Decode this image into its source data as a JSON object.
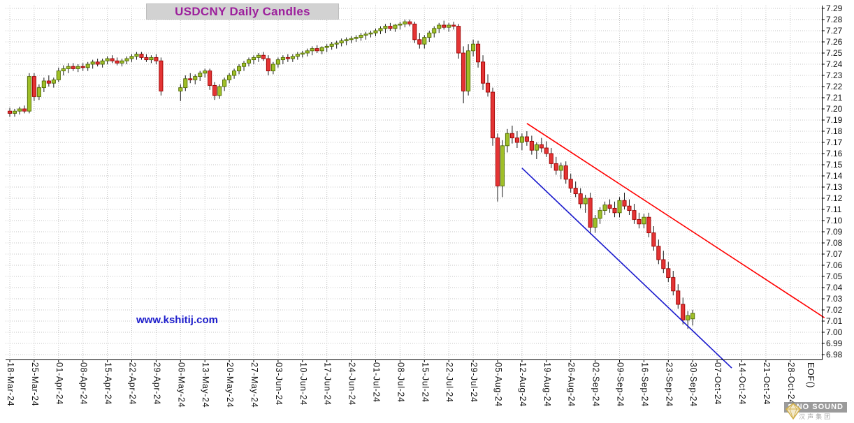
{
  "header": {
    "title": "USDCNY Daily Candles"
  },
  "watermark": "www.kshitij.com",
  "logo": {
    "name": "SINO SOUND",
    "subtitle": "汉声集团"
  },
  "chart_data": {
    "type": "candlestick",
    "title": "USDCNY Daily Candles",
    "symbol": "USDCNY",
    "interval": "daily",
    "grid": true,
    "legend_position": "none",
    "y_axis": {
      "side": "right",
      "min": 6.98,
      "max": 7.29,
      "tick_step": 0.01,
      "ticks": [
        "7.29",
        "7.28",
        "7.27",
        "7.26",
        "7.25",
        "7.24",
        "7.23",
        "7.22",
        "7.21",
        "7.20",
        "7.19",
        "7.18",
        "7.17",
        "7.16",
        "7.15",
        "7.14",
        "7.13",
        "7.12",
        "7.11",
        "7.10",
        "7.09",
        "7.08",
        "7.07",
        "7.06",
        "7.05",
        "7.04",
        "7.03",
        "7.02",
        "7.01",
        "7.00",
        "6.99",
        "6.98"
      ]
    },
    "x_axis": {
      "labels": [
        "18-Mar-24",
        "25-Mar-24",
        "01-Apr-24",
        "08-Apr-24",
        "15-Apr-24",
        "22-Apr-24",
        "29-Apr-24",
        "06-May-24",
        "13-May-24",
        "20-May-24",
        "27-May-24",
        "03-Jun-24",
        "10-Jun-24",
        "17-Jun-24",
        "24-Jun-24",
        "01-Jul-24",
        "08-Jul-24",
        "15-Jul-24",
        "22-Jul-24",
        "29-Jul-24",
        "05-Aug-24",
        "12-Aug-24",
        "19-Aug-24",
        "26-Aug-24",
        "02-Sep-24",
        "09-Sep-24",
        "16-Sep-24",
        "23-Sep-24",
        "30-Sep-24",
        "07-Oct-24",
        "14-Oct-24",
        "21-Oct-24",
        "28-Oct-24"
      ],
      "eof_label": "EOF()"
    },
    "colors": {
      "up": "#9fbf28",
      "up_stroke": "#4f6b00",
      "down": "#e43434",
      "down_stroke": "#9c0000",
      "wick": "#1a1a1a",
      "grid": "#c4c4c4",
      "axis": "#000000",
      "title": "#9c1f9c",
      "title_bg": "#d2d2d2",
      "watermark": "#1f1fcc",
      "trend_upper": "#ff0000",
      "trend_lower": "#1a1acd"
    },
    "trendlines": [
      {
        "name": "upper-channel",
        "color": "#ff0000",
        "from": {
          "tdi": 106,
          "price": 7.187
        },
        "to": {
          "tdi": 167,
          "price": 7.013
        }
      },
      {
        "name": "lower-channel",
        "color": "#1a1acd",
        "from": {
          "tdi": 105,
          "price": 7.147
        },
        "to": {
          "tdi": 148,
          "price": 6.968
        }
      }
    ],
    "candles": [
      [
        "2024-03-18",
        7.198,
        7.201,
        7.193,
        7.196
      ],
      [
        "2024-03-19",
        7.196,
        7.2,
        7.193,
        7.198
      ],
      [
        "2024-03-20",
        7.198,
        7.202,
        7.195,
        7.2
      ],
      [
        "2024-03-21",
        7.2,
        7.203,
        7.196,
        7.198
      ],
      [
        "2024-03-22",
        7.198,
        7.232,
        7.196,
        7.229
      ],
      [
        "2024-03-25",
        7.229,
        7.232,
        7.207,
        7.211
      ],
      [
        "2024-03-26",
        7.211,
        7.222,
        7.208,
        7.219
      ],
      [
        "2024-03-27",
        7.219,
        7.228,
        7.215,
        7.225
      ],
      [
        "2024-03-28",
        7.225,
        7.23,
        7.22,
        7.223
      ],
      [
        "2024-03-29",
        7.223,
        7.228,
        7.219,
        7.226
      ],
      [
        "2024-04-01",
        7.226,
        7.237,
        7.224,
        7.234
      ],
      [
        "2024-04-02",
        7.234,
        7.239,
        7.23,
        7.236
      ],
      [
        "2024-04-03",
        7.236,
        7.241,
        7.232,
        7.238
      ],
      [
        "2024-04-04",
        7.238,
        7.241,
        7.234,
        7.236
      ],
      [
        "2024-04-05",
        7.236,
        7.24,
        7.233,
        7.238
      ],
      [
        "2024-04-08",
        7.238,
        7.241,
        7.234,
        7.237
      ],
      [
        "2024-04-09",
        7.237,
        7.242,
        7.234,
        7.24
      ],
      [
        "2024-04-10",
        7.24,
        7.244,
        7.236,
        7.242
      ],
      [
        "2024-04-11",
        7.242,
        7.245,
        7.238,
        7.24
      ],
      [
        "2024-04-12",
        7.24,
        7.245,
        7.237,
        7.243
      ],
      [
        "2024-04-15",
        7.243,
        7.247,
        7.24,
        7.245
      ],
      [
        "2024-04-16",
        7.245,
        7.248,
        7.241,
        7.243
      ],
      [
        "2024-04-17",
        7.243,
        7.246,
        7.239,
        7.241
      ],
      [
        "2024-04-18",
        7.241,
        7.245,
        7.238,
        7.243
      ],
      [
        "2024-04-19",
        7.243,
        7.247,
        7.24,
        7.245
      ],
      [
        "2024-04-22",
        7.245,
        7.249,
        7.242,
        7.247
      ],
      [
        "2024-04-23",
        7.247,
        7.251,
        7.244,
        7.249
      ],
      [
        "2024-04-24",
        7.249,
        7.251,
        7.244,
        7.246
      ],
      [
        "2024-04-25",
        7.246,
        7.249,
        7.242,
        7.244
      ],
      [
        "2024-04-26",
        7.244,
        7.248,
        7.241,
        7.246
      ],
      [
        "2024-04-29",
        7.246,
        7.249,
        7.24,
        7.243
      ],
      [
        "2024-04-30",
        7.243,
        7.246,
        7.212,
        7.216
      ],
      [
        "2024-05-06",
        7.216,
        7.222,
        7.207,
        7.219
      ],
      [
        "2024-05-07",
        7.219,
        7.23,
        7.216,
        7.227
      ],
      [
        "2024-05-08",
        7.227,
        7.232,
        7.223,
        7.226
      ],
      [
        "2024-05-09",
        7.226,
        7.231,
        7.222,
        7.229
      ],
      [
        "2024-05-10",
        7.229,
        7.234,
        7.225,
        7.232
      ],
      [
        "2024-05-13",
        7.232,
        7.236,
        7.228,
        7.234
      ],
      [
        "2024-05-14",
        7.234,
        7.236,
        7.217,
        7.221
      ],
      [
        "2024-05-15",
        7.221,
        7.224,
        7.208,
        7.212
      ],
      [
        "2024-05-16",
        7.212,
        7.222,
        7.209,
        7.22
      ],
      [
        "2024-05-17",
        7.22,
        7.228,
        7.216,
        7.226
      ],
      [
        "2024-05-20",
        7.226,
        7.232,
        7.223,
        7.23
      ],
      [
        "2024-05-21",
        7.23,
        7.236,
        7.227,
        7.234
      ],
      [
        "2024-05-22",
        7.234,
        7.24,
        7.231,
        7.238
      ],
      [
        "2024-05-23",
        7.238,
        7.243,
        7.234,
        7.241
      ],
      [
        "2024-05-24",
        7.241,
        7.246,
        7.238,
        7.244
      ],
      [
        "2024-05-27",
        7.244,
        7.248,
        7.24,
        7.246
      ],
      [
        "2024-05-28",
        7.246,
        7.25,
        7.242,
        7.248
      ],
      [
        "2024-05-29",
        7.248,
        7.251,
        7.243,
        7.245
      ],
      [
        "2024-05-30",
        7.245,
        7.248,
        7.23,
        7.234
      ],
      [
        "2024-05-31",
        7.234,
        7.242,
        7.231,
        7.24
      ],
      [
        "2024-06-03",
        7.24,
        7.246,
        7.237,
        7.244
      ],
      [
        "2024-06-04",
        7.244,
        7.248,
        7.24,
        7.246
      ],
      [
        "2024-06-05",
        7.246,
        7.249,
        7.242,
        7.245
      ],
      [
        "2024-06-06",
        7.245,
        7.249,
        7.242,
        7.247
      ],
      [
        "2024-06-07",
        7.247,
        7.251,
        7.244,
        7.249
      ],
      [
        "2024-06-10",
        7.249,
        7.252,
        7.246,
        7.25
      ],
      [
        "2024-06-11",
        7.25,
        7.254,
        7.247,
        7.252
      ],
      [
        "2024-06-12",
        7.252,
        7.256,
        7.248,
        7.254
      ],
      [
        "2024-06-13",
        7.254,
        7.257,
        7.25,
        7.252
      ],
      [
        "2024-06-14",
        7.252,
        7.256,
        7.249,
        7.255
      ],
      [
        "2024-06-17",
        7.255,
        7.258,
        7.251,
        7.256
      ],
      [
        "2024-06-18",
        7.256,
        7.26,
        7.253,
        7.258
      ],
      [
        "2024-06-19",
        7.258,
        7.261,
        7.254,
        7.259
      ],
      [
        "2024-06-20",
        7.259,
        7.263,
        7.256,
        7.261
      ],
      [
        "2024-06-21",
        7.261,
        7.264,
        7.257,
        7.262
      ],
      [
        "2024-06-24",
        7.262,
        7.265,
        7.259,
        7.263
      ],
      [
        "2024-06-25",
        7.263,
        7.266,
        7.26,
        7.264
      ],
      [
        "2024-06-26",
        7.264,
        7.268,
        7.261,
        7.266
      ],
      [
        "2024-06-27",
        7.266,
        7.269,
        7.262,
        7.267
      ],
      [
        "2024-06-28",
        7.267,
        7.27,
        7.264,
        7.268
      ],
      [
        "2024-07-01",
        7.268,
        7.272,
        7.265,
        7.27
      ],
      [
        "2024-07-02",
        7.27,
        7.274,
        7.267,
        7.272
      ],
      [
        "2024-07-03",
        7.272,
        7.276,
        7.268,
        7.274
      ],
      [
        "2024-07-04",
        7.274,
        7.277,
        7.27,
        7.272
      ],
      [
        "2024-07-05",
        7.272,
        7.276,
        7.269,
        7.275
      ],
      [
        "2024-07-08",
        7.275,
        7.278,
        7.271,
        7.276
      ],
      [
        "2024-07-09",
        7.276,
        7.28,
        7.273,
        7.278
      ],
      [
        "2024-07-10",
        7.278,
        7.28,
        7.274,
        7.276
      ],
      [
        "2024-07-11",
        7.276,
        7.278,
        7.259,
        7.262
      ],
      [
        "2024-07-12",
        7.262,
        7.268,
        7.254,
        7.258
      ],
      [
        "2024-07-15",
        7.258,
        7.266,
        7.254,
        7.264
      ],
      [
        "2024-07-16",
        7.264,
        7.27,
        7.26,
        7.268
      ],
      [
        "2024-07-17",
        7.268,
        7.274,
        7.264,
        7.272
      ],
      [
        "2024-07-18",
        7.272,
        7.277,
        7.268,
        7.275
      ],
      [
        "2024-07-19",
        7.275,
        7.279,
        7.271,
        7.273
      ],
      [
        "2024-07-22",
        7.273,
        7.277,
        7.269,
        7.275
      ],
      [
        "2024-07-23",
        7.275,
        7.278,
        7.271,
        7.274
      ],
      [
        "2024-07-24",
        7.274,
        7.276,
        7.245,
        7.25
      ],
      [
        "2024-07-25",
        7.25,
        7.256,
        7.205,
        7.216
      ],
      [
        "2024-07-26",
        7.216,
        7.258,
        7.212,
        7.252
      ],
      [
        "2024-07-29",
        7.252,
        7.262,
        7.247,
        7.258
      ],
      [
        "2024-07-30",
        7.258,
        7.261,
        7.237,
        7.242
      ],
      [
        "2024-07-31",
        7.242,
        7.248,
        7.217,
        7.223
      ],
      [
        "2024-08-01",
        7.223,
        7.231,
        7.211,
        7.215
      ],
      [
        "2024-08-02",
        7.215,
        7.219,
        7.167,
        7.174
      ],
      [
        "2024-08-05",
        7.174,
        7.178,
        7.117,
        7.131
      ],
      [
        "2024-08-06",
        7.131,
        7.172,
        7.121,
        7.167
      ],
      [
        "2024-08-07",
        7.167,
        7.182,
        7.161,
        7.178
      ],
      [
        "2024-08-08",
        7.178,
        7.185,
        7.169,
        7.174
      ],
      [
        "2024-08-09",
        7.174,
        7.18,
        7.165,
        7.17
      ],
      [
        "2024-08-12",
        7.17,
        7.178,
        7.163,
        7.175
      ],
      [
        "2024-08-13",
        7.175,
        7.18,
        7.167,
        7.171
      ],
      [
        "2024-08-14",
        7.171,
        7.176,
        7.159,
        7.163
      ],
      [
        "2024-08-15",
        7.163,
        7.17,
        7.155,
        7.168
      ],
      [
        "2024-08-16",
        7.168,
        7.174,
        7.161,
        7.165
      ],
      [
        "2024-08-19",
        7.165,
        7.171,
        7.157,
        7.16
      ],
      [
        "2024-08-20",
        7.16,
        7.165,
        7.147,
        7.151
      ],
      [
        "2024-08-21",
        7.151,
        7.157,
        7.141,
        7.145
      ],
      [
        "2024-08-22",
        7.145,
        7.152,
        7.137,
        7.149
      ],
      [
        "2024-08-23",
        7.149,
        7.153,
        7.133,
        7.137
      ],
      [
        "2024-08-26",
        7.137,
        7.142,
        7.125,
        7.129
      ],
      [
        "2024-08-27",
        7.129,
        7.135,
        7.121,
        7.124
      ],
      [
        "2024-08-28",
        7.124,
        7.129,
        7.111,
        7.115
      ],
      [
        "2024-08-29",
        7.115,
        7.123,
        7.107,
        7.12
      ],
      [
        "2024-08-30",
        7.12,
        7.125,
        7.088,
        7.094
      ],
      [
        "2024-09-02",
        7.094,
        7.105,
        7.089,
        7.102
      ],
      [
        "2024-09-03",
        7.102,
        7.112,
        7.097,
        7.109
      ],
      [
        "2024-09-04",
        7.109,
        7.117,
        7.105,
        7.114
      ],
      [
        "2024-09-05",
        7.114,
        7.119,
        7.107,
        7.111
      ],
      [
        "2024-09-06",
        7.111,
        7.117,
        7.103,
        7.107
      ],
      [
        "2024-09-09",
        7.107,
        7.121,
        7.103,
        7.118
      ],
      [
        "2024-09-10",
        7.118,
        7.125,
        7.11,
        7.113
      ],
      [
        "2024-09-11",
        7.113,
        7.119,
        7.105,
        7.109
      ],
      [
        "2024-09-12",
        7.109,
        7.115,
        7.097,
        7.101
      ],
      [
        "2024-09-13",
        7.101,
        7.107,
        7.093,
        7.097
      ],
      [
        "2024-09-16",
        7.097,
        7.106,
        7.093,
        7.103
      ],
      [
        "2024-09-17",
        7.103,
        7.107,
        7.085,
        7.089
      ],
      [
        "2024-09-18",
        7.089,
        7.095,
        7.073,
        7.077
      ],
      [
        "2024-09-19",
        7.077,
        7.083,
        7.061,
        7.065
      ],
      [
        "2024-09-20",
        7.065,
        7.073,
        7.053,
        7.057
      ],
      [
        "2024-09-23",
        7.057,
        7.063,
        7.045,
        7.049
      ],
      [
        "2024-09-24",
        7.049,
        7.055,
        7.033,
        7.037
      ],
      [
        "2024-09-25",
        7.037,
        7.043,
        7.021,
        7.025
      ],
      [
        "2024-09-26",
        7.025,
        7.031,
        7.007,
        7.011
      ],
      [
        "2024-09-27",
        7.011,
        7.019,
        7.003,
        7.015
      ],
      [
        "2024-09-30",
        7.012,
        7.02,
        7.006,
        7.017
      ]
    ]
  }
}
